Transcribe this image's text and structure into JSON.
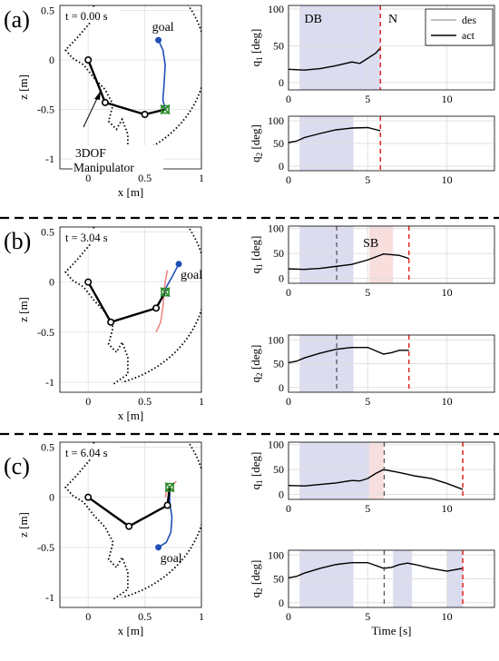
{
  "rows": [
    {
      "panel_label": "(a)",
      "time_label": "t = 0.00 s",
      "goal_label": "goal",
      "annotation": [
        "3DOF",
        "Manipulator"
      ],
      "q1_region_labels": [
        "DB",
        "N"
      ],
      "legend": [
        "des",
        "act"
      ]
    },
    {
      "panel_label": "(b)",
      "time_label": "t = 3.04 s",
      "goal_label": "goal",
      "q1_region_labels": [
        "SB"
      ]
    },
    {
      "panel_label": "(c)",
      "time_label": "t = 6.04 s",
      "goal_label": "goal"
    }
  ],
  "axes": {
    "workspace": {
      "xlabel": "x [m]",
      "ylabel": "z [m]",
      "xticks": [
        "0",
        "0.5",
        "1"
      ],
      "yticks": [
        "0.5",
        "0",
        "-0.5",
        "-1"
      ]
    },
    "q1": {
      "ylabel": "q",
      "ylabel_sub": "1",
      "ylabel_unit": " [deg]",
      "yticks": [
        "0",
        "50",
        "100"
      ]
    },
    "q2": {
      "ylabel": "q",
      "ylabel_sub": "2",
      "ylabel_unit": " [deg]",
      "yticks": [
        "0",
        "50",
        "100"
      ]
    },
    "time_xticks": [
      "0",
      "5",
      "10"
    ],
    "time_xlabel": "Time [s]"
  },
  "colors": {
    "db_region": "#dcdcf0",
    "sb_region": "#f9dede",
    "des_line": "#9a9a9a",
    "act_line": "#000000",
    "current_time": "#555555",
    "end_time": "#e0302a",
    "goal_path": "#1f4fb5",
    "prev_path": "#f08080",
    "goal_marker": "#2a8a2a",
    "goal_dot": "#1f4fb5"
  },
  "chart_data": [
    {
      "type": "line",
      "panel": "a-workspace",
      "xlim": [
        -0.25,
        1.0
      ],
      "ylim": [
        -1.1,
        0.55
      ],
      "grid": true,
      "links": [
        [
          0,
          0
        ],
        [
          0.15,
          -0.43
        ],
        [
          0.5,
          -0.55
        ],
        [
          0.68,
          -0.5
        ]
      ],
      "goal": [
        0.62,
        0.2
      ],
      "goal_path": [
        [
          0.62,
          0.2
        ],
        [
          0.66,
          0.1
        ],
        [
          0.68,
          -0.05
        ],
        [
          0.67,
          -0.25
        ],
        [
          0.66,
          -0.4
        ],
        [
          0.68,
          -0.5
        ]
      ]
    },
    {
      "type": "line",
      "panel": "a-q1",
      "xlim": [
        0,
        13
      ],
      "ylim": [
        -10,
        105
      ],
      "grid": true,
      "regions": [
        {
          "label": "DB",
          "x": [
            0.7,
            5.8
          ]
        }
      ],
      "current_time": null,
      "end_time": 5.8,
      "act": {
        "x": [
          0,
          1,
          2,
          3,
          4,
          4.5,
          5,
          5.5,
          5.8
        ],
        "y": [
          18,
          17,
          19,
          23,
          28,
          26,
          33,
          40,
          47
        ]
      }
    },
    {
      "type": "line",
      "panel": "a-q2",
      "xlim": [
        0,
        13
      ],
      "ylim": [
        -10,
        110
      ],
      "grid": true,
      "regions": [
        {
          "label": "",
          "x": [
            0.7,
            4.1
          ]
        }
      ],
      "current_time": null,
      "end_time": 5.8,
      "act": {
        "x": [
          0,
          0.5,
          1,
          2,
          3,
          4,
          5,
          5.8
        ],
        "y": [
          52,
          55,
          63,
          72,
          80,
          84,
          85,
          78
        ]
      }
    },
    {
      "type": "line",
      "panel": "b-workspace",
      "xlim": [
        -0.25,
        1.0
      ],
      "ylim": [
        -1.1,
        0.55
      ],
      "grid": true,
      "links": [
        [
          0,
          0
        ],
        [
          0.2,
          -0.4
        ],
        [
          0.6,
          -0.26
        ],
        [
          0.68,
          -0.1
        ]
      ],
      "goal": [
        0.8,
        0.18
      ],
      "goal_path": [
        [
          0.8,
          0.18
        ],
        [
          0.74,
          0.05
        ],
        [
          0.69,
          -0.05
        ],
        [
          0.68,
          -0.1
        ]
      ],
      "prev_path": [
        [
          0.7,
          0.12
        ],
        [
          0.68,
          0.0
        ],
        [
          0.67,
          -0.1
        ],
        [
          0.66,
          -0.25
        ],
        [
          0.64,
          -0.4
        ],
        [
          0.6,
          -0.5
        ]
      ]
    },
    {
      "type": "line",
      "panel": "b-q1",
      "xlim": [
        0,
        13
      ],
      "ylim": [
        -10,
        105
      ],
      "grid": true,
      "regions": [
        {
          "label": "",
          "x": [
            0.7,
            4.1
          ]
        },
        {
          "label": "SB",
          "x": [
            5.1,
            6.6
          ]
        }
      ],
      "current_time": 3.04,
      "end_time": 7.6,
      "act": {
        "x": [
          0,
          1,
          2,
          3,
          4,
          5,
          6,
          7,
          7.6
        ],
        "y": [
          19,
          18,
          20,
          24,
          28,
          37,
          49,
          46,
          40
        ]
      }
    },
    {
      "type": "line",
      "panel": "b-q2",
      "xlim": [
        0,
        13
      ],
      "ylim": [
        -10,
        110
      ],
      "grid": true,
      "regions": [
        {
          "label": "",
          "x": [
            0.7,
            4.1
          ]
        }
      ],
      "current_time": 3.04,
      "end_time": 7.6,
      "act": {
        "x": [
          0,
          0.5,
          1,
          2,
          3,
          4,
          5,
          6,
          6.5,
          7,
          7.6
        ],
        "y": [
          52,
          55,
          62,
          72,
          80,
          84,
          84,
          70,
          73,
          78,
          78
        ]
      }
    },
    {
      "type": "line",
      "panel": "c-workspace",
      "xlim": [
        -0.25,
        1.0
      ],
      "ylim": [
        -1.1,
        0.55
      ],
      "grid": true,
      "links": [
        [
          0,
          0
        ],
        [
          0.36,
          -0.29
        ],
        [
          0.7,
          -0.08
        ],
        [
          0.72,
          0.1
        ]
      ],
      "goal": [
        0.62,
        -0.5
      ],
      "goal_path": [
        [
          0.72,
          0.1
        ],
        [
          0.72,
          -0.05
        ],
        [
          0.74,
          -0.2
        ],
        [
          0.73,
          -0.35
        ],
        [
          0.69,
          -0.45
        ],
        [
          0.62,
          -0.5
        ]
      ],
      "prev_path": [
        [
          0.68,
          0.0
        ],
        [
          0.7,
          0.08
        ],
        [
          0.74,
          0.12
        ],
        [
          0.78,
          0.16
        ]
      ]
    },
    {
      "type": "line",
      "panel": "c-q1",
      "xlim": [
        0,
        13
      ],
      "ylim": [
        -10,
        105
      ],
      "grid": true,
      "regions": [
        {
          "label": "",
          "x": [
            0.7,
            5.1
          ]
        },
        {
          "label": "",
          "x": [
            5.1,
            6.0
          ]
        }
      ],
      "current_time": 6.04,
      "end_time": 11,
      "act": {
        "x": [
          0,
          1,
          2,
          3,
          4,
          4.5,
          5,
          5.5,
          6,
          7,
          8,
          9,
          10,
          11
        ],
        "y": [
          18,
          17,
          20,
          23,
          28,
          27,
          32,
          42,
          50,
          44,
          37,
          32,
          22,
          10
        ]
      }
    },
    {
      "type": "line",
      "panel": "c-q2",
      "xlim": [
        0,
        13
      ],
      "ylim": [
        -10,
        110
      ],
      "grid": true,
      "regions": [
        {
          "label": "",
          "x": [
            0.7,
            4.1
          ]
        },
        {
          "label": "",
          "x": [
            6.6,
            7.8
          ]
        },
        {
          "label": "",
          "x": [
            10.0,
            11.0
          ]
        }
      ],
      "current_time": 6.04,
      "end_time": 11,
      "act": {
        "x": [
          0,
          0.5,
          1,
          2,
          3,
          4,
          5,
          6,
          6.5,
          7,
          7.5,
          8,
          9,
          10,
          11
        ],
        "y": [
          52,
          55,
          62,
          72,
          80,
          84,
          84,
          72,
          74,
          80,
          83,
          80,
          72,
          66,
          72
        ]
      }
    }
  ]
}
